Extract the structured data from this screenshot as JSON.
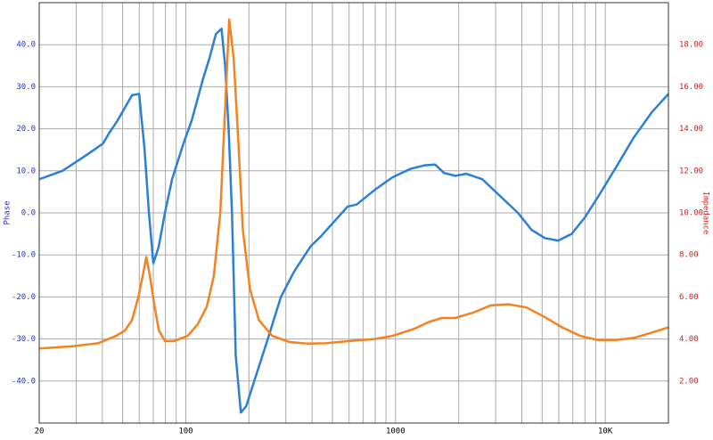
{
  "chart_data": {
    "type": "line",
    "xscale": "log",
    "grid": true,
    "ylabel": "Phase",
    "y2label": "Impedance",
    "xlim": [
      20,
      20000
    ],
    "xticks": [
      {
        "value": 20,
        "label": "20"
      },
      {
        "value": 30,
        "label": null
      },
      {
        "value": 40,
        "label": null
      },
      {
        "value": 50,
        "label": null
      },
      {
        "value": 60,
        "label": null
      },
      {
        "value": 70,
        "label": null
      },
      {
        "value": 80,
        "label": null
      },
      {
        "value": 90,
        "label": null
      },
      100,
      {
        "value": 200,
        "label": null
      },
      {
        "value": 300,
        "label": null
      },
      {
        "value": 400,
        "label": null
      },
      {
        "value": 500,
        "label": null
      },
      {
        "value": 600,
        "label": null
      },
      {
        "value": 700,
        "label": null
      },
      {
        "value": 800,
        "label": null
      },
      {
        "value": 900,
        "label": null
      },
      1000,
      {
        "value": 2000,
        "label": null
      },
      {
        "value": 3000,
        "label": null
      },
      {
        "value": 4000,
        "label": null
      },
      {
        "value": 5000,
        "label": null
      },
      {
        "value": 6000,
        "label": null
      },
      {
        "value": 7000,
        "label": null
      },
      {
        "value": 8000,
        "label": null
      },
      {
        "value": 9000,
        "label": null
      },
      {
        "value": 10000,
        "label": "10K"
      }
    ],
    "ylim": [
      -50,
      50
    ],
    "yticks": [
      {
        "value": -40,
        "label": "-40.0"
      },
      {
        "value": -30,
        "label": "-30.0"
      },
      {
        "value": -20,
        "label": "-20.0"
      },
      {
        "value": -10,
        "label": "-10.0"
      },
      {
        "value": 0,
        "label": "0.0"
      },
      {
        "value": 10,
        "label": "10.0"
      },
      {
        "value": 20,
        "label": "20.0"
      },
      {
        "value": 30,
        "label": "30.0"
      },
      {
        "value": 40,
        "label": "40.0"
      }
    ],
    "y2lim": [
      0,
      20
    ],
    "y2ticks": [
      {
        "value": 2,
        "label": "2.00"
      },
      {
        "value": 4,
        "label": "4.00"
      },
      {
        "value": 6,
        "label": "6.00"
      },
      {
        "value": 8,
        "label": "8.00"
      },
      {
        "value": 10,
        "label": "10.00"
      },
      {
        "value": 12,
        "label": "12.00"
      },
      {
        "value": 14,
        "label": "14.00"
      },
      {
        "value": 16,
        "label": "16.00"
      },
      {
        "value": 18,
        "label": "18.00"
      }
    ],
    "ylabel_color": "#2233cc",
    "y2label_color": "#cc2222",
    "series": [
      {
        "color": "#2a7fd8",
        "axis": "y",
        "x": [
          20,
          25.8,
          33,
          36.5,
          40.3,
          43.1,
          47.3,
          51.2,
          55.4,
          59.9,
          63.6,
          66.7,
          70,
          74.3,
          79.5,
          86,
          96.7,
          106.7,
          121,
          130,
          139,
          148,
          154,
          160,
          166,
          173,
          183,
          194,
          212,
          246,
          284,
          328,
          393,
          442,
          511,
          591,
          653,
          797,
          970,
          1183,
          1371,
          1543,
          1703,
          1928,
          2171,
          2592,
          3152,
          3834,
          4443,
          5148,
          5966,
          6913,
          8012,
          9284,
          11300,
          13700,
          16700,
          20000
        ],
        "values": [
          8,
          10,
          13.5,
          15,
          16.5,
          19,
          22,
          25,
          28,
          28.3,
          15,
          0,
          -12,
          -8,
          0,
          8,
          16,
          22,
          32,
          37,
          42.5,
          43.8,
          35,
          20,
          0,
          -34,
          -47.5,
          -46,
          -40,
          -30,
          -20,
          -14,
          -8,
          -5.5,
          -2,
          1.5,
          2,
          5.5,
          8.5,
          10.5,
          11.3,
          11.5,
          9.5,
          8.8,
          9.3,
          8,
          4,
          0,
          -4,
          -6,
          -6.6,
          -5,
          -1,
          4,
          11,
          18,
          24,
          28.3
        ]
      },
      {
        "color": "#f5821f",
        "axis": "y2",
        "x": [
          20,
          28.5,
          38.2,
          46.5,
          51.2,
          55.4,
          59.4,
          62.3,
          64.8,
          67.4,
          70.8,
          74.4,
          79.6,
          87.8,
          102,
          114,
          126,
          136,
          146,
          154,
          161,
          169,
          178,
          187,
          202,
          223,
          258,
          314,
          382,
          465,
          594,
          796,
          968,
          1238,
          1433,
          1660,
          1924,
          2340,
          2846,
          3460,
          4210,
          5128,
          6238,
          7586,
          9226,
          11220,
          13640,
          16600,
          20000
        ],
        "values": [
          3.55,
          3.65,
          3.8,
          4.15,
          4.4,
          4.9,
          6,
          7,
          7.9,
          7,
          5.6,
          4.4,
          3.9,
          3.9,
          4.15,
          4.7,
          5.55,
          7,
          10,
          15,
          19.2,
          17.4,
          13.4,
          9.2,
          6.4,
          4.9,
          4.15,
          3.85,
          3.78,
          3.8,
          3.9,
          4,
          4.15,
          4.5,
          4.8,
          5,
          5,
          5.25,
          5.6,
          5.65,
          5.5,
          5.05,
          4.55,
          4.15,
          3.95,
          3.95,
          4.05,
          4.3,
          4.55
        ]
      }
    ]
  }
}
